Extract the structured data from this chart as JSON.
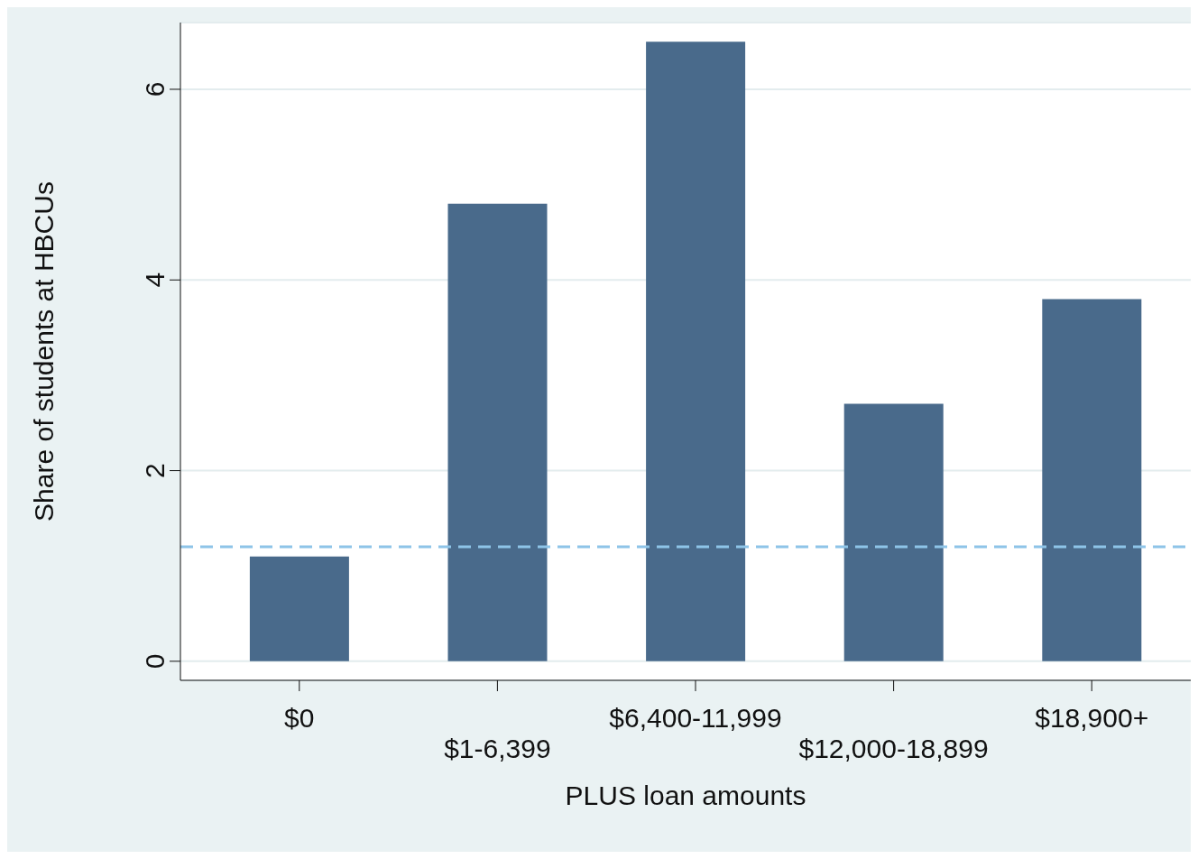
{
  "chart_data": {
    "type": "bar",
    "xlabel": "PLUS loan amounts",
    "ylabel": "Share of students at HBCUs",
    "categories": [
      "$0",
      "$1-6,399",
      "$6,400-11,999",
      "$12,000-18,899",
      "$18,900+"
    ],
    "values": [
      1.1,
      4.8,
      6.5,
      2.7,
      3.8
    ],
    "color": "#496a8b",
    "ylim": [
      -0.2,
      6.7
    ],
    "yticks": [
      0,
      2,
      4,
      6
    ],
    "grid": "y",
    "ref_lines": [
      {
        "axis": "y",
        "value": 1.2,
        "color": "#8ec4e8",
        "line_style": "dashed"
      }
    ]
  }
}
